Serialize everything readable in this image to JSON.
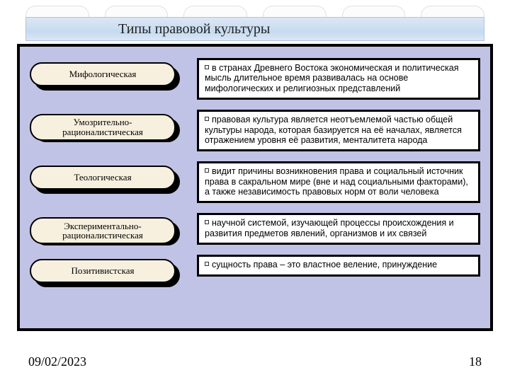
{
  "slide": {
    "title": "Типы правовой культуры",
    "date": "09/02/2023",
    "page_number": "18",
    "background_color": "#ffffff",
    "panel_color": "#c1c3e6",
    "panel_border_color": "#000000",
    "panel_border_width": 4,
    "title_bar_gradient": [
      "#dbe6f4",
      "#cfe0f2",
      "#c5daf0",
      "#dbe6f4"
    ],
    "pill_fill": "#f7f0de",
    "pill_border": "#000000",
    "desc_fill": "#ffffff",
    "desc_border": "#000000",
    "title_fontsize": 20,
    "label_fontsize": 13,
    "desc_fontsize": 12.5,
    "footer_fontsize": 18
  },
  "rows": [
    {
      "label": "Мифологическая",
      "twoline": false,
      "desc": "в странах Древнего Востока экономическая и политическая мысль длительное время развивалась на основе мифологических и религиозных представлений"
    },
    {
      "label": "Умозрительно-рационалистическая",
      "twoline": true,
      "desc": "правовая культура является неотъемлемой частью общей культуры народа, которая базируется на её началах, является отражением уровня её развития, менталитета народа"
    },
    {
      "label": "Теологическая",
      "twoline": false,
      "desc": "видит причины возникновения права и социальный источник права в сакральном мире (вне и над социальными факторами), а также независимость правовых норм от воли человека"
    },
    {
      "label": "Экспериментально-рационалистическая",
      "twoline": true,
      "desc": "научной системой, изучающей процессы происхождения и развития предметов явлений, организмов и их связей"
    },
    {
      "label": "Позитивистская",
      "twoline": false,
      "desc": "сущность права – это властное веление, принуждение"
    }
  ]
}
